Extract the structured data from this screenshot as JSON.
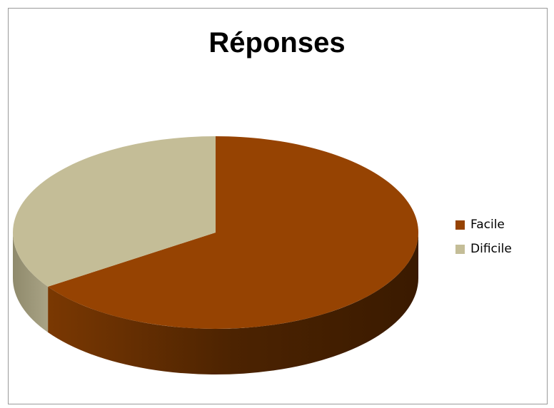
{
  "chart_data": {
    "type": "pie",
    "title": "Réponses",
    "categories": [
      "Facile",
      "Dificile"
    ],
    "values": [
      65.5,
      34.5
    ],
    "colors": [
      "#964302",
      "#C4BD97"
    ],
    "legend_position": "right",
    "style": "3d"
  }
}
